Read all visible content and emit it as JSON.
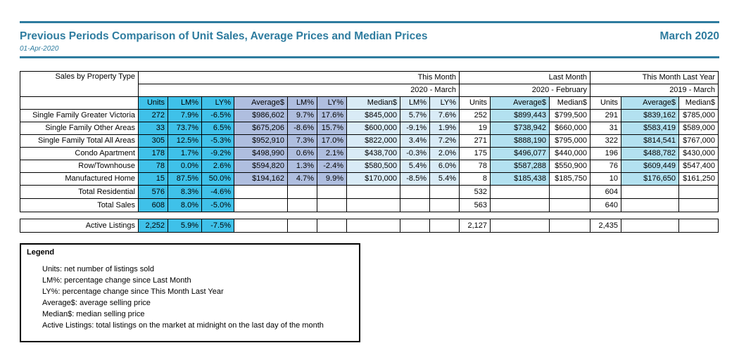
{
  "header": {
    "title": "Previous Periods Comparison of Unit Sales, Average Prices and Median Prices",
    "period": "March 2020",
    "date": "01-Apr-2020"
  },
  "table": {
    "corner_label": "Sales by Property Type",
    "sections": [
      {
        "label": "This Month",
        "sublabel": "2020 - March",
        "columns": [
          "Units",
          "LM%",
          "LY%",
          "Average$",
          "LM%",
          "LY%",
          "Median$",
          "LM%",
          "LY%"
        ]
      },
      {
        "label": "Last Month",
        "sublabel": "2020 - February",
        "columns": [
          "Units",
          "Average$",
          "Median$"
        ]
      },
      {
        "label": "This Month Last Year",
        "sublabel": "2019 - March",
        "columns": [
          "Units",
          "Average$",
          "Median$"
        ]
      }
    ],
    "rows": [
      {
        "label": "Single Family Greater Victoria",
        "this_month": [
          "272",
          "7.9%",
          "-6.5%",
          "$986,602",
          "9.7%",
          "17.6%",
          "$845,000",
          "5.7%",
          "7.6%"
        ],
        "last_month": [
          "252",
          "$899,443",
          "$799,500"
        ],
        "last_year": [
          "291",
          "$839,162",
          "$785,000"
        ]
      },
      {
        "label": "Single Family Other Areas",
        "this_month": [
          "33",
          "73.7%",
          "6.5%",
          "$675,206",
          "-8.6%",
          "15.7%",
          "$600,000",
          "-9.1%",
          "1.9%"
        ],
        "last_month": [
          "19",
          "$738,942",
          "$660,000"
        ],
        "last_year": [
          "31",
          "$583,419",
          "$589,000"
        ]
      },
      {
        "label": "Single Family Total All Areas",
        "this_month": [
          "305",
          "12.5%",
          "-5.3%",
          "$952,910",
          "7.3%",
          "17.0%",
          "$822,000",
          "3.4%",
          "7.2%"
        ],
        "last_month": [
          "271",
          "$888,190",
          "$795,000"
        ],
        "last_year": [
          "322",
          "$814,541",
          "$767,000"
        ]
      },
      {
        "label": "Condo Apartment",
        "this_month": [
          "178",
          "1.7%",
          "-9.2%",
          "$498,990",
          "0.6%",
          "2.1%",
          "$438,700",
          "-0.3%",
          "2.0%"
        ],
        "last_month": [
          "175",
          "$496,077",
          "$440,000"
        ],
        "last_year": [
          "196",
          "$488,782",
          "$430,000"
        ]
      },
      {
        "label": "Row/Townhouse",
        "this_month": [
          "78",
          "0.0%",
          "2.6%",
          "$594,820",
          "1.3%",
          "-2.4%",
          "$580,500",
          "5.4%",
          "6.0%"
        ],
        "last_month": [
          "78",
          "$587,288",
          "$550,900"
        ],
        "last_year": [
          "76",
          "$609,449",
          "$547,400"
        ]
      },
      {
        "label": "Manufactured Home",
        "this_month": [
          "15",
          "87.5%",
          "50.0%",
          "$194,162",
          "4.7%",
          "9.9%",
          "$170,000",
          "-8.5%",
          "5.4%"
        ],
        "last_month": [
          "8",
          "$185,438",
          "$185,750"
        ],
        "last_year": [
          "10",
          "$176,650",
          "$161,250"
        ]
      }
    ],
    "totals": [
      {
        "label": "Total Residential",
        "this_month": [
          "576",
          "8.3%",
          "-4.6%"
        ],
        "last_month_units": "532",
        "last_year_units": "604"
      },
      {
        "label": "Total Sales",
        "this_month": [
          "608",
          "8.0%",
          "-5.0%"
        ],
        "last_month_units": "563",
        "last_year_units": "640"
      }
    ],
    "active_listings": {
      "label": "Active Listings",
      "this_month": [
        "2,252",
        "5.9%",
        "-7.5%"
      ],
      "last_month_units": "2,127",
      "last_year_units": "2,435"
    }
  },
  "legend": {
    "title": "Legend",
    "items": [
      "Units: net number of listings sold",
      "LM%: percentage change since Last Month",
      "LY%: percentage change since This Month Last Year",
      "Average$: average selling price",
      "Median$: median selling price",
      "Active Listings: total listings on the market at midnight on the last day of the month"
    ]
  },
  "colors": {
    "accent_teal": "#2E7C9F",
    "units_cyan": "#3FC1E9",
    "average_periwinkle": "#AFBEDF",
    "median_pale_blue": "#D9EBF6",
    "right_average_light_cyan": "#B3E1F0"
  }
}
